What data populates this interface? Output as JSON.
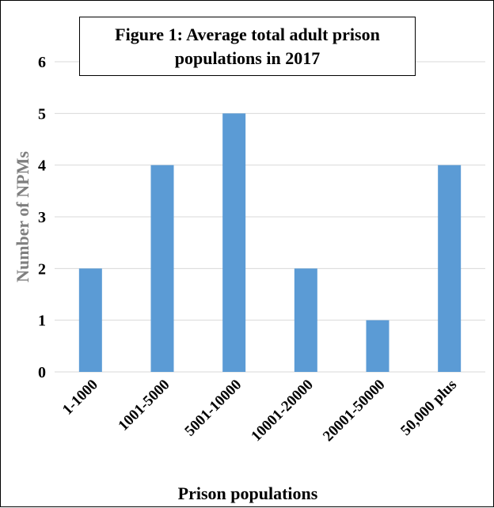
{
  "chart_data": {
    "type": "bar",
    "title_lines": [
      "Figure 1: Average total adult prison",
      "populations in 2017"
    ],
    "categories": [
      "1-1000",
      "1001-5000",
      "5001-10000",
      "10001-20000",
      "20001-50000",
      "50,000 plus"
    ],
    "values": [
      2,
      4,
      5,
      2,
      1,
      4
    ],
    "xlabel": "Prison populations",
    "ylabel": "Number of NPMs",
    "ylim": [
      0,
      6
    ],
    "yticks": [
      "0",
      "1",
      "2",
      "3",
      "4",
      "5",
      "6"
    ],
    "grid": true,
    "legend": "none",
    "colors": {
      "bar": "#5b9bd5",
      "grid": "#d9d9d9"
    }
  }
}
